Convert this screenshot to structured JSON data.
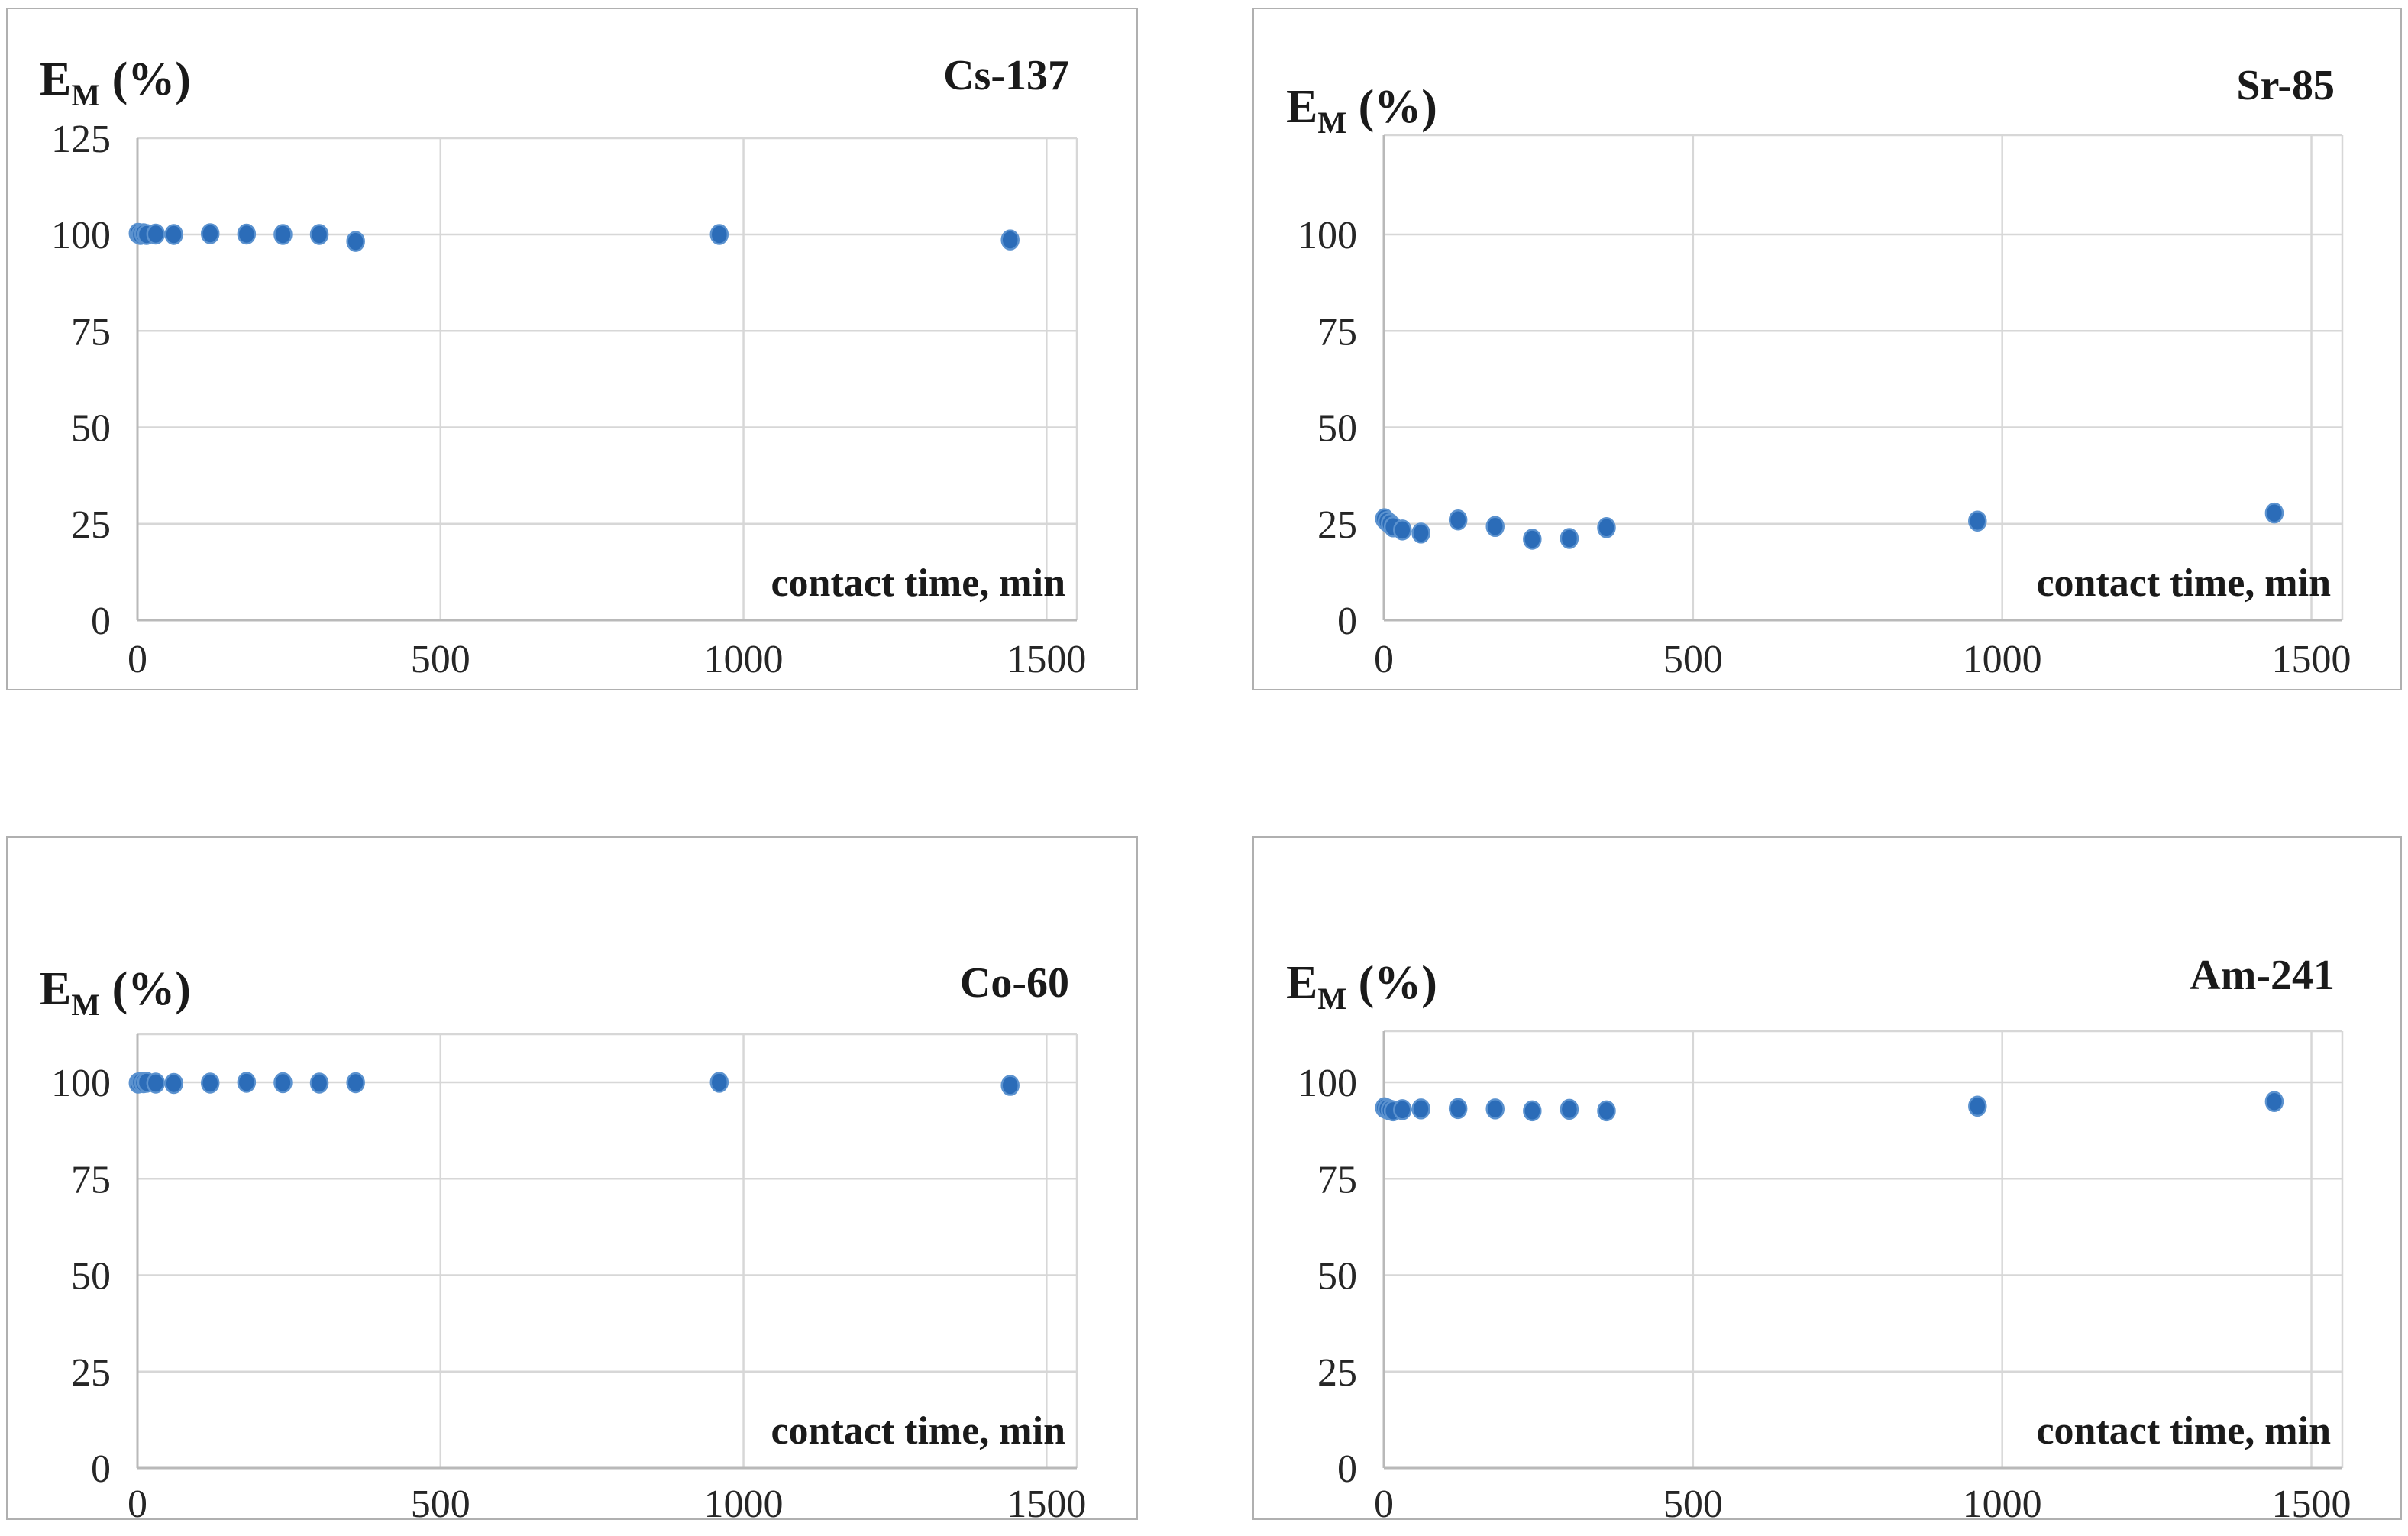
{
  "colors": {
    "point": "#2b6cb8",
    "point_edge": "#5b92cf",
    "grid": "#d7d7d7",
    "axis": "#b9b9b9",
    "text": "#262626",
    "title_text": "#1a1a1a",
    "panel_border": "#b0b0b0",
    "background": "#ffffff"
  },
  "chart_data": [
    {
      "id": "cs-137",
      "type": "scatter",
      "title": "Cs-137",
      "ylabel": "E_M (%)",
      "ylabel_parts": {
        "main": "E",
        "sub": "M",
        "rest": " (%)"
      },
      "xlabel": "contact time, min",
      "x_ticks": [
        0,
        500,
        1000,
        1500
      ],
      "y_ticks": [
        0,
        25,
        50,
        75,
        100,
        125
      ],
      "xlim": [
        0,
        1550
      ],
      "ylim": [
        0,
        125
      ],
      "grid": true,
      "legend": false,
      "points": [
        [
          1,
          100.3
        ],
        [
          5,
          100
        ],
        [
          10,
          100.2
        ],
        [
          15,
          100
        ],
        [
          30,
          100.1
        ],
        [
          60,
          100
        ],
        [
          120,
          100.2
        ],
        [
          180,
          100.1
        ],
        [
          240,
          100
        ],
        [
          300,
          100
        ],
        [
          360,
          98.2
        ],
        [
          960,
          100
        ],
        [
          1440,
          98.6
        ]
      ]
    },
    {
      "id": "sr-85",
      "type": "scatter",
      "title": "Sr-85",
      "ylabel": "E_M (%)",
      "ylabel_parts": {
        "main": "E",
        "sub": "M",
        "rest": " (%)"
      },
      "xlabel": "contact time, min",
      "x_ticks": [
        0,
        500,
        1000,
        1500
      ],
      "y_ticks": [
        0,
        25,
        50,
        75,
        100
      ],
      "xlim": [
        0,
        1550
      ],
      "ylim": [
        0,
        126
      ],
      "grid": true,
      "legend": false,
      "points": [
        [
          1,
          26.3
        ],
        [
          5,
          25.6
        ],
        [
          10,
          25.0
        ],
        [
          15,
          24.2
        ],
        [
          30,
          23.4
        ],
        [
          60,
          22.6
        ],
        [
          120,
          26.0
        ],
        [
          180,
          24.3
        ],
        [
          240,
          21.0
        ],
        [
          300,
          21.2
        ],
        [
          360,
          24.0
        ],
        [
          960,
          25.7
        ],
        [
          1440,
          27.8
        ]
      ]
    },
    {
      "id": "co-60",
      "type": "scatter",
      "title": "Co-60",
      "ylabel": "E_M (%)",
      "ylabel_parts": {
        "main": "E",
        "sub": "M",
        "rest": " (%)"
      },
      "xlabel": "contact time, min",
      "x_ticks": [
        0,
        500,
        1000,
        1500
      ],
      "y_ticks": [
        0,
        25,
        50,
        75,
        100
      ],
      "xlim": [
        0,
        1550
      ],
      "ylim": [
        0,
        113
      ],
      "grid": true,
      "legend": false,
      "points": [
        [
          1,
          99.8
        ],
        [
          5,
          100
        ],
        [
          10,
          99.9
        ],
        [
          15,
          100
        ],
        [
          30,
          99.8
        ],
        [
          60,
          99.7
        ],
        [
          120,
          99.8
        ],
        [
          180,
          100
        ],
        [
          240,
          99.9
        ],
        [
          300,
          99.8
        ],
        [
          360,
          99.9
        ],
        [
          960,
          100
        ],
        [
          1440,
          99.2
        ]
      ]
    },
    {
      "id": "am-241",
      "type": "scatter",
      "title": "Am-241",
      "ylabel": "E_M (%)",
      "ylabel_parts": {
        "main": "E",
        "sub": "M",
        "rest": " (%)"
      },
      "xlabel": "contact time, min",
      "x_ticks": [
        0,
        500,
        1000,
        1500
      ],
      "y_ticks": [
        0,
        25,
        50,
        75,
        100
      ],
      "xlim": [
        0,
        1550
      ],
      "ylim": [
        0,
        113
      ],
      "grid": true,
      "legend": false,
      "points": [
        [
          1,
          93.4
        ],
        [
          5,
          93.1
        ],
        [
          10,
          92.8
        ],
        [
          15,
          92.6
        ],
        [
          30,
          92.9
        ],
        [
          60,
          93.1
        ],
        [
          120,
          93.2
        ],
        [
          180,
          93.1
        ],
        [
          240,
          92.6
        ],
        [
          300,
          93.0
        ],
        [
          360,
          92.6
        ],
        [
          960,
          93.8
        ],
        [
          1440,
          95.0
        ]
      ]
    }
  ]
}
